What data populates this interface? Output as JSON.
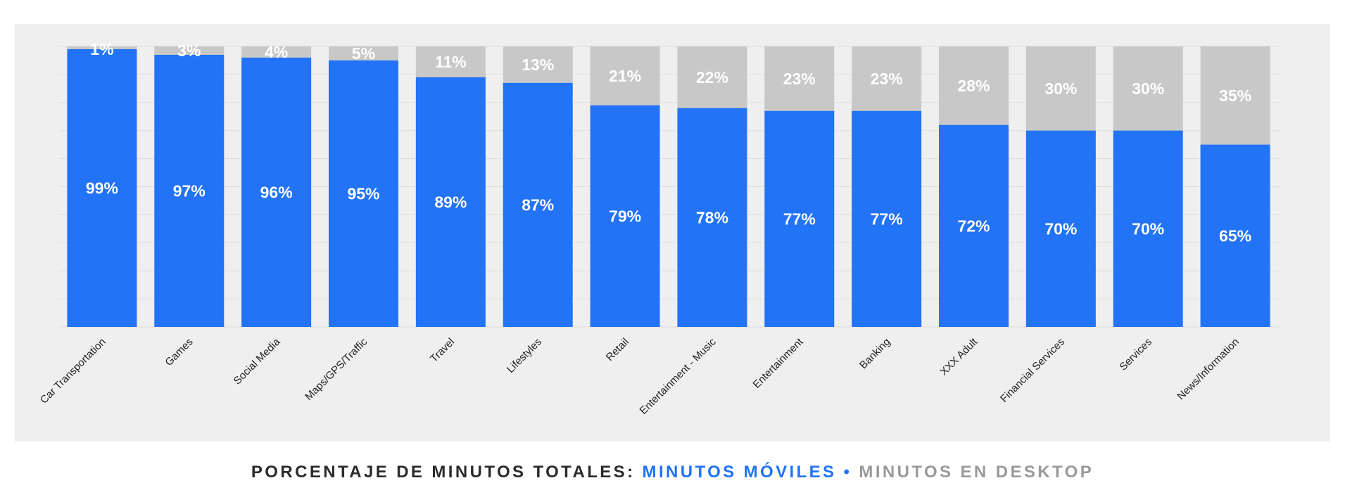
{
  "colors": {
    "mobile": "#2273f5",
    "desktop": "#c8c8c8",
    "panel": "#efefef",
    "gridline": "#dedede"
  },
  "legend": {
    "prefix": "PORCENTAJE DE MINUTOS TOTALES:",
    "mobile": "MINUTOS MÓVILES",
    "separator": "•",
    "desktop": "MINUTOS EN DESKTOP"
  },
  "chart_data": {
    "type": "bar",
    "stacked": true,
    "ylim": [
      0,
      100
    ],
    "grid": true,
    "categories": [
      "Car Transportation",
      "Games",
      "Social Media",
      "Maps/GPS/Traffic",
      "Travel",
      "Lifestyles",
      "Retail",
      "Entertainment - Music",
      "Entertainment",
      "Banking",
      "XXX Adult",
      "Financial Services",
      "Services",
      "News/Information"
    ],
    "series": [
      {
        "name": "MINUTOS MÓVILES",
        "values": [
          99,
          97,
          96,
          95,
          89,
          87,
          79,
          78,
          77,
          77,
          72,
          70,
          70,
          65
        ],
        "labels": [
          "99%",
          "97%",
          "96%",
          "95%",
          "89%",
          "87%",
          "79%",
          "78%",
          "77%",
          "77%",
          "72%",
          "70%",
          "70%",
          "65%"
        ]
      },
      {
        "name": "MINUTOS EN DESKTOP",
        "values": [
          1,
          3,
          4,
          5,
          11,
          13,
          21,
          22,
          23,
          23,
          28,
          30,
          30,
          35
        ],
        "labels": [
          "1%",
          "3%",
          "4%",
          "5%",
          "11%",
          "13%",
          "21%",
          "22%",
          "23%",
          "23%",
          "28%",
          "30%",
          "30%",
          "35%"
        ]
      }
    ]
  }
}
